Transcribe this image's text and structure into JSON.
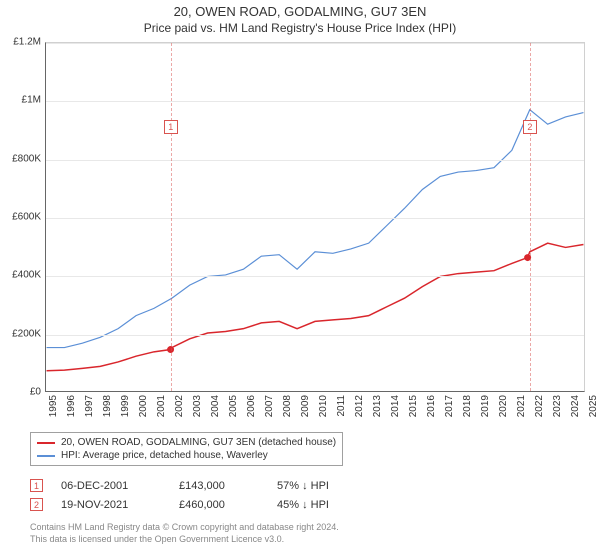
{
  "title": "20, OWEN ROAD, GODALMING, GU7 3EN",
  "subtitle": "Price paid vs. HM Land Registry's House Price Index (HPI)",
  "chart": {
    "type": "line",
    "background_color": "#ffffff",
    "grid_color": "#e8e8e8",
    "axis_color": "#666666",
    "ylim": [
      0,
      1200000
    ],
    "ytick_step": 200000,
    "yticks": [
      "£0",
      "£200K",
      "£400K",
      "£600K",
      "£800K",
      "£1M",
      "£1.2M"
    ],
    "xlim": [
      1995,
      2025
    ],
    "xticks": [
      1995,
      1996,
      1997,
      1998,
      1999,
      2000,
      2001,
      2002,
      2003,
      2004,
      2005,
      2006,
      2007,
      2008,
      2009,
      2010,
      2011,
      2012,
      2013,
      2014,
      2015,
      2016,
      2017,
      2018,
      2019,
      2020,
      2021,
      2022,
      2023,
      2024,
      2025
    ],
    "title_fontsize": 13,
    "label_fontsize": 10,
    "series": [
      {
        "name": "price_paid",
        "label": "20, OWEN ROAD, GODALMING, GU7 3EN (detached house)",
        "color": "#d9262c",
        "line_width": 1.5,
        "points": [
          [
            1995,
            70000
          ],
          [
            1996,
            72000
          ],
          [
            1997,
            78000
          ],
          [
            1998,
            85000
          ],
          [
            1999,
            100000
          ],
          [
            2000,
            120000
          ],
          [
            2001,
            135000
          ],
          [
            2001.93,
            143000
          ],
          [
            2002,
            150000
          ],
          [
            2003,
            180000
          ],
          [
            2004,
            200000
          ],
          [
            2005,
            205000
          ],
          [
            2006,
            215000
          ],
          [
            2007,
            235000
          ],
          [
            2008,
            240000
          ],
          [
            2009,
            215000
          ],
          [
            2010,
            240000
          ],
          [
            2011,
            245000
          ],
          [
            2012,
            250000
          ],
          [
            2013,
            260000
          ],
          [
            2014,
            290000
          ],
          [
            2015,
            320000
          ],
          [
            2016,
            360000
          ],
          [
            2017,
            395000
          ],
          [
            2018,
            405000
          ],
          [
            2019,
            410000
          ],
          [
            2020,
            415000
          ],
          [
            2021,
            440000
          ],
          [
            2021.88,
            460000
          ],
          [
            2022,
            480000
          ],
          [
            2023,
            510000
          ],
          [
            2024,
            495000
          ],
          [
            2025,
            505000
          ]
        ]
      },
      {
        "name": "hpi",
        "label": "HPI: Average price, detached house, Waverley",
        "color": "#5b8fd6",
        "line_width": 1.2,
        "points": [
          [
            1995,
            150000
          ],
          [
            1996,
            150000
          ],
          [
            1997,
            165000
          ],
          [
            1998,
            185000
          ],
          [
            1999,
            215000
          ],
          [
            2000,
            260000
          ],
          [
            2001,
            285000
          ],
          [
            2002,
            320000
          ],
          [
            2003,
            365000
          ],
          [
            2004,
            395000
          ],
          [
            2005,
            400000
          ],
          [
            2006,
            420000
          ],
          [
            2007,
            465000
          ],
          [
            2008,
            470000
          ],
          [
            2009,
            420000
          ],
          [
            2010,
            480000
          ],
          [
            2011,
            475000
          ],
          [
            2012,
            490000
          ],
          [
            2013,
            510000
          ],
          [
            2014,
            570000
          ],
          [
            2015,
            630000
          ],
          [
            2016,
            695000
          ],
          [
            2017,
            740000
          ],
          [
            2018,
            755000
          ],
          [
            2019,
            760000
          ],
          [
            2020,
            770000
          ],
          [
            2021,
            830000
          ],
          [
            2022,
            970000
          ],
          [
            2023,
            920000
          ],
          [
            2024,
            945000
          ],
          [
            2025,
            960000
          ]
        ]
      }
    ],
    "markers": [
      {
        "id": "1",
        "x": 2001.93,
        "label_y": 0.78
      },
      {
        "id": "2",
        "x": 2021.88,
        "label_y": 0.78
      }
    ]
  },
  "legend": {
    "border_color": "#a0a0a0",
    "items": [
      {
        "color": "#d9262c",
        "label": "20, OWEN ROAD, GODALMING, GU7 3EN (detached house)"
      },
      {
        "color": "#5b8fd6",
        "label": "HPI: Average price, detached house, Waverley"
      }
    ]
  },
  "transactions": [
    {
      "id": "1",
      "date": "06-DEC-2001",
      "price": "£143,000",
      "pct": "57% ↓ HPI"
    },
    {
      "id": "2",
      "date": "19-NOV-2021",
      "price": "£460,000",
      "pct": "45% ↓ HPI"
    }
  ],
  "footer": {
    "line1": "Contains HM Land Registry data © Crown copyright and database right 2024.",
    "line2": "This data is licensed under the Open Government Licence v3.0."
  }
}
